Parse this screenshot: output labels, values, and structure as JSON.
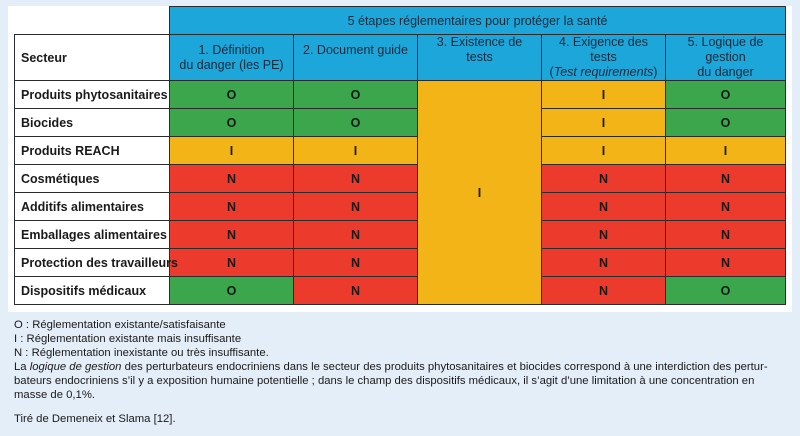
{
  "table": {
    "super_header": "5 étapes réglementaires pour protéger la santé",
    "sector_header": "Secteur",
    "columns": [
      {
        "line1": "1. Définition",
        "line2": "du danger (les PE)"
      },
      {
        "line1": "2. Document guide",
        "line2": ""
      },
      {
        "line1": "3. Existence de tests",
        "line2": ""
      },
      {
        "line1": "4. Exigence des tests",
        "line2": "Test requirements",
        "line2_suffix": ")",
        "line2_prefix": "("
      },
      {
        "line1": "5. Logique de gestion",
        "line2": "du danger"
      }
    ],
    "rows": [
      {
        "sector": "Produits phytosanitaires",
        "c1": "O",
        "c2": "O",
        "c4": "I",
        "c5": "O"
      },
      {
        "sector": "Biocides",
        "c1": "O",
        "c2": "O",
        "c4": "I",
        "c5": "O"
      },
      {
        "sector": "Produits REACH",
        "c1": "I",
        "c2": "I",
        "c4": "I",
        "c5": "I"
      },
      {
        "sector": "Cosmétiques",
        "c1": "N",
        "c2": "N",
        "c4": "N",
        "c5": "N"
      },
      {
        "sector": "Additifs alimentaires",
        "c1": "N",
        "c2": "N",
        "c4": "N",
        "c5": "N"
      },
      {
        "sector": "Emballages alimentaires",
        "c1": "N",
        "c2": "N",
        "c4": "N",
        "c5": "N"
      },
      {
        "sector": "Protection des travailleurs",
        "c1": "N",
        "c2": "N",
        "c4": "N",
        "c5": "N"
      },
      {
        "sector": "Dispositifs médicaux",
        "c1": "O",
        "c2": "N",
        "c4": "N",
        "c5": "O"
      }
    ],
    "col3_merged_value": "I"
  },
  "colors": {
    "O": "#3ba64c",
    "I": "#f3b417",
    "N": "#ec3a2c",
    "header": "#1da6da",
    "page_background": "#e4eef8"
  },
  "legend": {
    "o": "O : Réglementation existante/satisfaisante",
    "i": "I : Réglementation existante mais insuffisante",
    "n": "N : Réglementation inexistante ou très insuffisante."
  },
  "note": {
    "prefix": "La ",
    "emphasis": "logique de gestion",
    "body": " des perturbateurs endocriniens dans le secteur des produits phytosanitaires et biocides correspond à une interdiction des pertur-bateurs endocriniens s’il y a exposition humaine potentielle ; dans le champ des dispositifs médicaux, il s’agit d’une limitation à une concentration en masse de 0,1%."
  },
  "source": "Tiré de Demeneix et Slama [12]."
}
